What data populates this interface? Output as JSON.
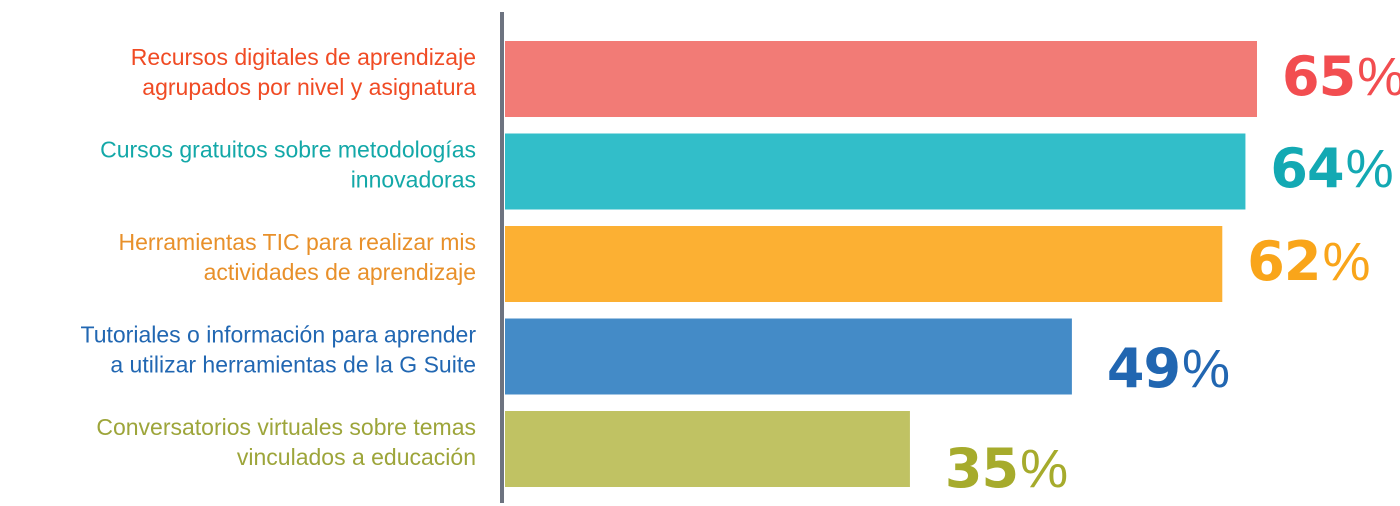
{
  "chart_data": {
    "type": "bar",
    "orientation": "horizontal",
    "categories": [
      [
        "Recursos digitales de aprendizaje",
        "agrupados por nivel y asignatura"
      ],
      [
        "Cursos gratuitos sobre metodologías",
        "innovadoras"
      ],
      [
        "Herramientas TIC para realizar mis",
        "actividades de aprendizaje"
      ],
      [
        "Tutoriales o información para aprender",
        "a utilizar herramientas de la G Suite"
      ],
      [
        "Conversatorios virtuales sobre temas",
        "vinculados a educación"
      ]
    ],
    "values": [
      65,
      64,
      62,
      49,
      35
    ],
    "value_suffix": "%",
    "bar_colors": [
      "#f27b76",
      "#32bec9",
      "#fcb033",
      "#448bc7",
      "#c0c263"
    ],
    "label_colors": [
      "#f04b24",
      "#13a8a8",
      "#e8902a",
      "#2167b2",
      "#9da53a"
    ],
    "value_colors": [
      "#f24d50",
      "#13a9b3",
      "#f9a51a",
      "#2166b1",
      "#a6ab2c"
    ],
    "axis_color": "#6d7380",
    "xlim": [
      0,
      65
    ],
    "grid": false,
    "legend": "none"
  }
}
